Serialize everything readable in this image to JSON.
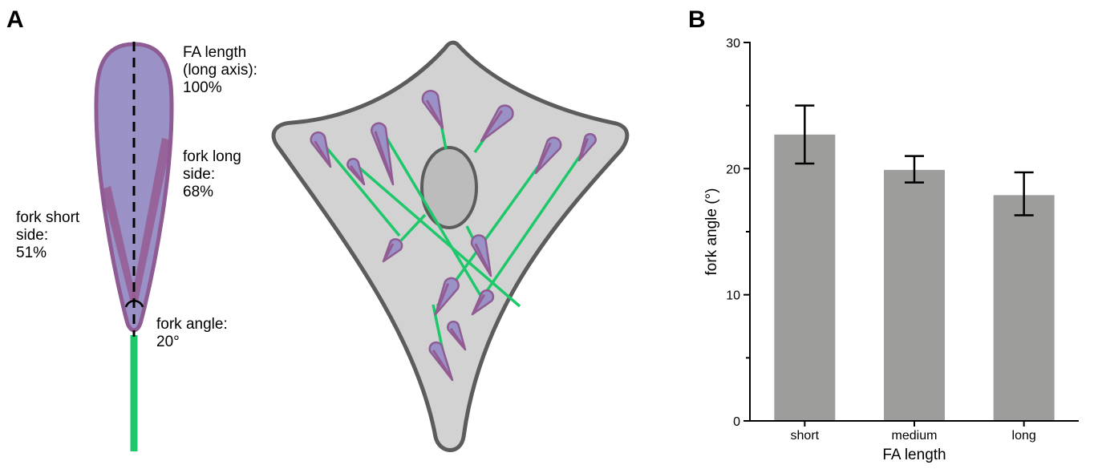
{
  "panels": {
    "a_label": "A",
    "b_label": "B"
  },
  "diagram": {
    "fa_length_label": [
      "FA length",
      "(long axis):",
      "100%"
    ],
    "fork_long_label": [
      "fork long",
      "side:",
      "68%"
    ],
    "fork_short_label": [
      "fork short",
      "side:",
      "51%"
    ],
    "fork_angle_label": [
      "fork angle:",
      "20°"
    ],
    "colors": {
      "focal_adhesion_fill": "#9a91c6",
      "focal_adhesion_outline": "#8e5c93",
      "fork_side": "#955a92",
      "stress_fiber": "#1ec86a",
      "cell_fill": "#d2d2d2",
      "cell_outline": "#5c5c5c",
      "nucleus_fill": "#bcbcbc"
    }
  },
  "chart_data": {
    "type": "bar",
    "categories": [
      "short",
      "medium",
      "long"
    ],
    "values": [
      22.7,
      19.9,
      17.9
    ],
    "error_low": [
      20.4,
      18.9,
      16.3
    ],
    "error_high": [
      25.0,
      21.0,
      19.7
    ],
    "xlabel": "FA length",
    "ylabel": "fork angle (°)",
    "ylim": [
      0,
      30
    ],
    "yticks": [
      0,
      10,
      20,
      30
    ],
    "minor_yticks": [
      5,
      15,
      25
    ],
    "grid": false,
    "bar_color": "#9d9d9b"
  }
}
